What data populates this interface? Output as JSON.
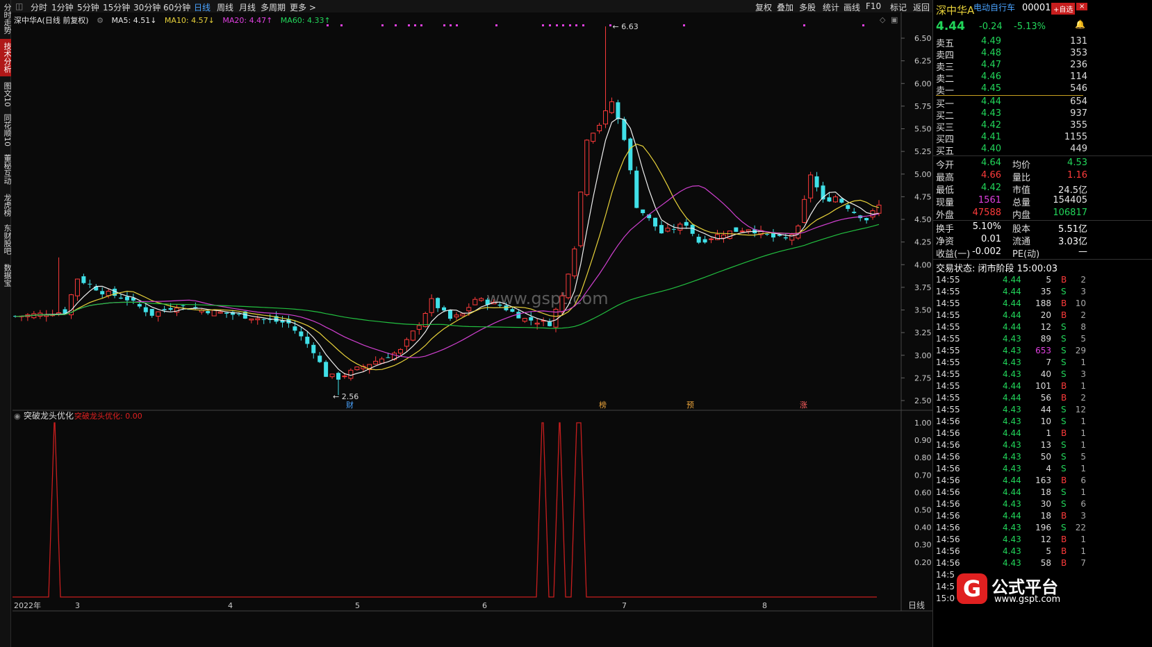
{
  "left_tabs": [
    "分时走势",
    "技术分析",
    "图文10",
    "同花顺10",
    "董秘互动",
    "龙虎榜",
    "东财股吧",
    "数据宝"
  ],
  "topbar": {
    "periods": [
      "分时",
      "1分钟",
      "5分钟",
      "15分钟",
      "30分钟",
      "60分钟",
      "日线",
      "周线",
      "月线",
      "多周期",
      "更多 >"
    ],
    "active": "日线",
    "right": [
      "复权",
      "叠加",
      "多股",
      "统计",
      "画线",
      "F10",
      "标记",
      "返回"
    ]
  },
  "ma": {
    "title": "深中华A(日线 前复权)",
    "ma5": "MA5: 4.51↓",
    "ma10": "MA10: 4.57↓",
    "ma20": "MA20: 4.47↑",
    "ma60": "MA60: 4.33↑"
  },
  "watermark": "www.gspt.com",
  "indicator": {
    "name": "突破龙头优化",
    "label": "突破龙头优化",
    "value": "0.00"
  },
  "chart_data": {
    "type": "candlestick",
    "ylim": [
      2.5,
      6.5
    ],
    "yticks": [
      "6.50",
      "6.25",
      "6.00",
      "5.75",
      "5.50",
      "5.25",
      "5.00",
      "4.75",
      "4.50",
      "4.25",
      "4.00",
      "3.75",
      "3.50",
      "3.25",
      "3.00",
      "2.75",
      "2.50"
    ],
    "sub_yticks": [
      "1.00",
      "0.90",
      "0.80",
      "0.70",
      "0.60",
      "0.50",
      "0.40",
      "0.30",
      "0.20"
    ],
    "xlabels": [
      "2022年",
      "3",
      "4",
      "5",
      "6",
      "7",
      "8"
    ],
    "period_label": "日线",
    "high_label": "6.63",
    "low_label": "2.56",
    "event_markers": [
      "财",
      "榜",
      "预",
      "涨"
    ]
  },
  "quote": {
    "name": "深中华A",
    "concept": "电动自行车",
    "code": "000017",
    "add_label": "+自选",
    "price": "4.44",
    "change": "-0.24",
    "pct": "-5.13%"
  },
  "asks": [
    [
      "卖五",
      "4.49",
      "131"
    ],
    [
      "卖四",
      "4.48",
      "353"
    ],
    [
      "卖三",
      "4.47",
      "236"
    ],
    [
      "卖二",
      "4.46",
      "114"
    ],
    [
      "卖一",
      "4.45",
      "546"
    ]
  ],
  "bids": [
    [
      "买一",
      "4.44",
      "654"
    ],
    [
      "买二",
      "4.43",
      "937"
    ],
    [
      "买三",
      "4.42",
      "355"
    ],
    [
      "买四",
      "4.41",
      "1155"
    ],
    [
      "买五",
      "4.40",
      "449"
    ]
  ],
  "stats": [
    [
      "今开",
      "4.64",
      "均价",
      "4.53"
    ],
    [
      "最高",
      "4.66",
      "量比",
      "1.16"
    ],
    [
      "最低",
      "4.42",
      "市值",
      "24.5亿"
    ],
    [
      "现量",
      "1561",
      "总量",
      "154405"
    ],
    [
      "外盘",
      "47588",
      "内盘",
      "106817"
    ]
  ],
  "stats2": [
    [
      "换手",
      "5.10%",
      "股本",
      "5.51亿"
    ],
    [
      "净资",
      "0.01",
      "流通",
      "3.03亿"
    ],
    [
      "收益(一)",
      "-0.002",
      "PE(动)",
      "—"
    ]
  ],
  "status": "交易状态: 闭市阶段 15:00:03",
  "ticks": [
    [
      "14:55",
      "4.44",
      "5",
      "B",
      "2"
    ],
    [
      "14:55",
      "4.44",
      "35",
      "S",
      "3"
    ],
    [
      "14:55",
      "4.44",
      "188",
      "B",
      "10"
    ],
    [
      "14:55",
      "4.44",
      "20",
      "B",
      "2"
    ],
    [
      "14:55",
      "4.44",
      "12",
      "S",
      "8"
    ],
    [
      "14:55",
      "4.43",
      "89",
      "S",
      "5"
    ],
    [
      "14:55",
      "4.43",
      "653",
      "S",
      "29"
    ],
    [
      "14:55",
      "4.43",
      "7",
      "S",
      "1"
    ],
    [
      "14:55",
      "4.43",
      "40",
      "S",
      "3"
    ],
    [
      "14:55",
      "4.44",
      "101",
      "B",
      "1"
    ],
    [
      "14:55",
      "4.44",
      "56",
      "B",
      "2"
    ],
    [
      "14:55",
      "4.43",
      "44",
      "S",
      "12"
    ],
    [
      "14:56",
      "4.43",
      "10",
      "S",
      "1"
    ],
    [
      "14:56",
      "4.44",
      "1",
      "B",
      "1"
    ],
    [
      "14:56",
      "4.43",
      "13",
      "S",
      "1"
    ],
    [
      "14:56",
      "4.43",
      "50",
      "S",
      "5"
    ],
    [
      "14:56",
      "4.43",
      "4",
      "S",
      "1"
    ],
    [
      "14:56",
      "4.44",
      "163",
      "B",
      "6"
    ],
    [
      "14:56",
      "4.44",
      "18",
      "S",
      "1"
    ],
    [
      "14:56",
      "4.43",
      "30",
      "S",
      "6"
    ],
    [
      "14:56",
      "4.44",
      "18",
      "B",
      "3"
    ],
    [
      "14:56",
      "4.43",
      "196",
      "S",
      "22"
    ],
    [
      "14:56",
      "4.43",
      "12",
      "B",
      "1"
    ],
    [
      "14:56",
      "4.43",
      "5",
      "B",
      "1"
    ],
    [
      "14:56",
      "4.43",
      "58",
      "B",
      "7"
    ],
    [
      "14:5",
      "",
      "",
      "",
      ""
    ],
    [
      "14:5",
      "",
      "",
      "",
      ""
    ],
    [
      "15:00",
      "",
      "",
      "",
      ""
    ]
  ],
  "logo": {
    "name": "公式平台",
    "url": "www.gspt.com"
  }
}
